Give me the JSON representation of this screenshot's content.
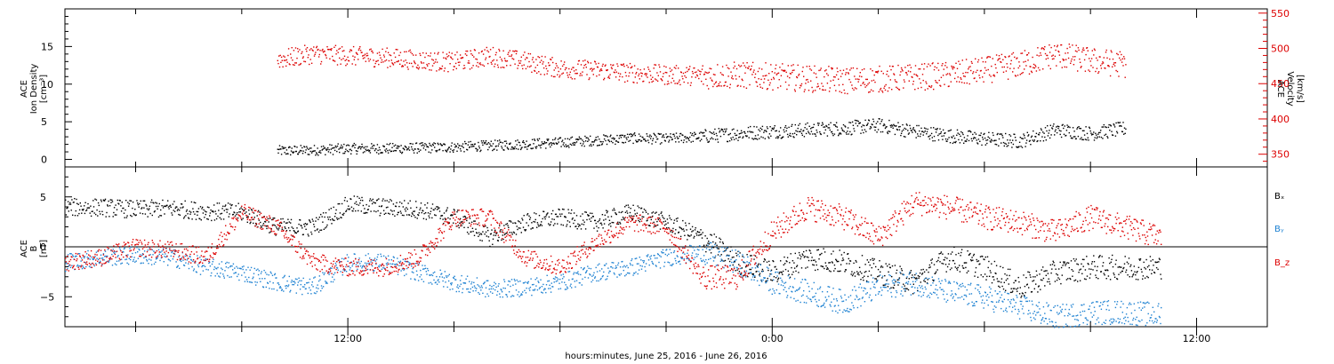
{
  "chart_data": [
    {
      "panel": "top",
      "type": "scatter",
      "left_axis": {
        "label_lines": [
          "ACE",
          "Ion Density",
          "[cm⁻³]"
        ],
        "ylim": [
          -1,
          20
        ],
        "ticks": [
          0,
          5,
          10,
          15
        ],
        "tick_labels": [
          "0",
          "5",
          "10",
          "15"
        ],
        "color": "#000000"
      },
      "right_axis": {
        "label_lines": [
          "ACE",
          "Velocity",
          "[km/s]"
        ],
        "ylim": [
          332,
          556
        ],
        "ticks": [
          350,
          400,
          450,
          500,
          550
        ],
        "tick_labels": [
          "350",
          "400",
          "450",
          "500",
          "550"
        ],
        "color": "#dd0000"
      },
      "series": [
        {
          "axis": "left",
          "color": "#000000",
          "x_hours": [
            -14,
            -13,
            -12,
            -11,
            -10,
            -9,
            -8,
            -7,
            -6,
            -5,
            -4,
            -3,
            -2,
            -1,
            0,
            1,
            2,
            3,
            4,
            5,
            6,
            7,
            8,
            9,
            10
          ],
          "y": [
            1.2,
            1.3,
            1.5,
            1.5,
            1.6,
            1.7,
            1.9,
            2.1,
            2.3,
            2.6,
            2.9,
            2.8,
            3.1,
            3.5,
            3.8,
            4.0,
            4.2,
            4.6,
            3.8,
            3.2,
            2.8,
            2.5,
            4.0,
            3.5,
            4.2
          ]
        },
        {
          "axis": "right",
          "color": "#dd0000",
          "x_hours": [
            -14,
            -13,
            -12,
            -11,
            -10,
            -9,
            -8,
            -7,
            -6,
            -5,
            -4,
            -3,
            -2,
            -1,
            0,
            1,
            2,
            3,
            4,
            5,
            6,
            7,
            8,
            9,
            10
          ],
          "y": [
            485,
            493,
            490,
            488,
            484,
            481,
            490,
            482,
            472,
            470,
            466,
            463,
            462,
            463,
            461,
            458,
            455,
            457,
            460,
            463,
            470,
            478,
            492,
            483,
            478
          ]
        }
      ]
    },
    {
      "panel": "bottom",
      "type": "scatter",
      "left_axis": {
        "label_lines": [
          "ACE",
          "B",
          "[nT]"
        ],
        "ylim": [
          -8,
          8
        ],
        "ticks": [
          -5,
          0,
          5
        ],
        "tick_labels": [
          "−5",
          "0",
          "5"
        ],
        "color": "#000000"
      },
      "zero_line": true,
      "legend": [
        {
          "text": "Bₓ",
          "color": "#000000"
        },
        {
          "text": "Bᵧ",
          "color": "#1e82d2"
        },
        {
          "text": "B_z",
          "color": "#dd0000"
        }
      ],
      "series": [
        {
          "name": "Bx",
          "color": "#000000",
          "x_hours": [
            -20,
            -19,
            -18,
            -17,
            -16,
            -15,
            -14,
            -13,
            -12,
            -11,
            -10,
            -9,
            -8,
            -7,
            -6,
            -5,
            -4,
            -3,
            -2,
            -1,
            0,
            1,
            2,
            3,
            4,
            5,
            6,
            7,
            8,
            9,
            10,
            11
          ],
          "y": [
            4.0,
            4.0,
            3.8,
            3.9,
            3.6,
            3.5,
            2.0,
            2.0,
            4.3,
            4.0,
            3.8,
            3.0,
            1.0,
            2.5,
            3.0,
            2.5,
            3.5,
            2.5,
            1.0,
            -1.5,
            -2.5,
            -1.0,
            -1.5,
            -2.5,
            -3.5,
            -1.0,
            -2.0,
            -4.0,
            -2.5,
            -2.0,
            -2.0,
            -2.0
          ]
        },
        {
          "name": "By",
          "color": "#1e82d2",
          "x_hours": [
            -20,
            -19,
            -18,
            -17,
            -16,
            -15,
            -14,
            -13,
            -12,
            -11,
            -10,
            -9,
            -8,
            -7,
            -6,
            -5,
            -4,
            -3,
            -2,
            -1,
            0,
            1,
            2,
            3,
            4,
            5,
            6,
            7,
            8,
            9,
            10,
            11
          ],
          "y": [
            -1.5,
            -1.0,
            -0.8,
            -1.0,
            -2.0,
            -2.5,
            -3.5,
            -4.0,
            -1.5,
            -1.5,
            -2.5,
            -3.5,
            -4.2,
            -4.0,
            -3.5,
            -2.5,
            -2.0,
            -1.0,
            -0.5,
            -1.5,
            -3.5,
            -4.5,
            -5.5,
            -4.0,
            -3.5,
            -4.5,
            -5.0,
            -6.0,
            -7.0,
            -6.5,
            -6.5,
            -6.8
          ]
        },
        {
          "name": "Bz",
          "color": "#dd0000",
          "x_hours": [
            -20,
            -19,
            -18,
            -17,
            -16,
            -15,
            -14,
            -13,
            -12,
            -11,
            -10,
            -9,
            -8,
            -7,
            -6,
            -5,
            -4,
            -3,
            -2,
            -1,
            0,
            1,
            2,
            3,
            4,
            5,
            6,
            7,
            8,
            9,
            10,
            11
          ],
          "y": [
            -1.5,
            -1.0,
            0.0,
            -0.3,
            -1.0,
            3.5,
            2.0,
            -1.5,
            -2.0,
            -2.0,
            -1.0,
            3.0,
            3.0,
            -1.0,
            -2.0,
            0.5,
            2.5,
            2.0,
            -3.0,
            -3.0,
            1.5,
            4.0,
            3.0,
            1.0,
            4.5,
            4.0,
            3.0,
            2.5,
            1.5,
            3.0,
            2.0,
            1.0
          ]
        }
      ]
    }
  ],
  "x_axis": {
    "xlim_hours": [
      -20,
      14
    ],
    "ticks_hours": [
      -12,
      0,
      12
    ],
    "tick_labels": [
      "12:00",
      "0:00",
      "12:00"
    ],
    "xlabel": "hours:minutes, June 25, 2016 - June 26, 2016"
  }
}
